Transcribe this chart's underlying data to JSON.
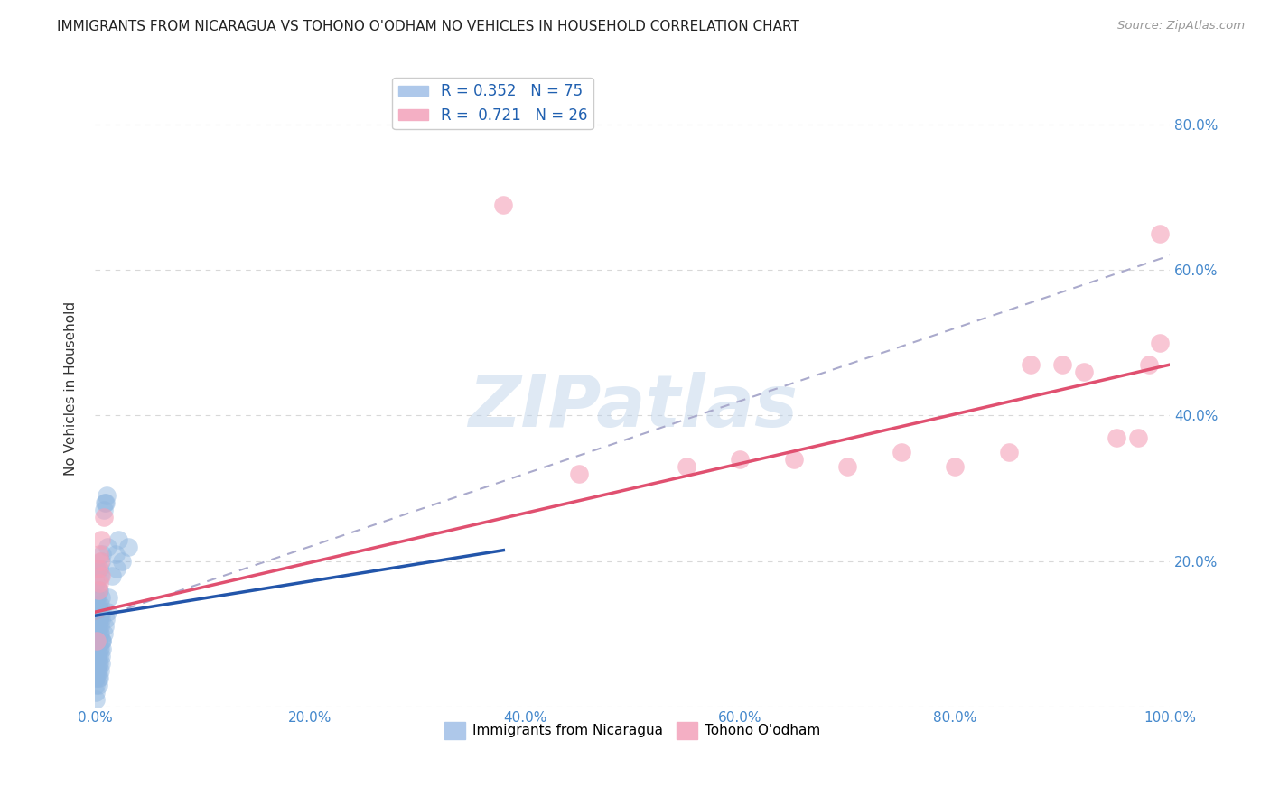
{
  "title": "IMMIGRANTS FROM NICARAGUA VS TOHONO O'ODHAM NO VEHICLES IN HOUSEHOLD CORRELATION CHART",
  "source": "Source: ZipAtlas.com",
  "ylabel": "No Vehicles in Household",
  "xlim": [
    0.0,
    1.0
  ],
  "ylim": [
    0.0,
    0.875
  ],
  "xtick_labels": [
    "0.0%",
    "",
    "",
    "",
    "",
    "",
    "20.0%",
    "",
    "",
    "",
    "",
    "",
    "40.0%",
    "",
    "",
    "",
    "",
    "",
    "60.0%",
    "",
    "",
    "",
    "",
    "",
    "80.0%",
    "",
    "",
    "",
    "",
    "",
    "100.0%"
  ],
  "xtick_values": [
    0.0,
    0.2,
    0.4,
    0.6,
    0.8,
    1.0
  ],
  "xtick_display": [
    "0.0%",
    "20.0%",
    "40.0%",
    "60.0%",
    "80.0%",
    "100.0%"
  ],
  "ytick_values": [
    0.0,
    0.2,
    0.4,
    0.6,
    0.8
  ],
  "ytick_labels_right": [
    "",
    "20.0%",
    "40.0%",
    "60.0%",
    "80.0%"
  ],
  "legend_labels": [
    "Immigrants from Nicaragua",
    "Tohono O'odham"
  ],
  "watermark": "ZIPatlas",
  "blue_color": "#92b8e0",
  "pink_color": "#f4a0b8",
  "blue_scatter": [
    [
      0.002,
      0.13
    ],
    [
      0.003,
      0.14
    ],
    [
      0.004,
      0.16
    ],
    [
      0.005,
      0.14
    ],
    [
      0.006,
      0.15
    ],
    [
      0.002,
      0.11
    ],
    [
      0.004,
      0.12
    ],
    [
      0.005,
      0.13
    ],
    [
      0.001,
      0.09
    ],
    [
      0.003,
      0.11
    ],
    [
      0.004,
      0.12
    ],
    [
      0.005,
      0.13
    ],
    [
      0.003,
      0.09
    ],
    [
      0.004,
      0.08
    ],
    [
      0.005,
      0.1
    ],
    [
      0.006,
      0.09
    ],
    [
      0.007,
      0.08
    ],
    [
      0.004,
      0.07
    ],
    [
      0.003,
      0.06
    ],
    [
      0.002,
      0.07
    ],
    [
      0.003,
      0.05
    ],
    [
      0.004,
      0.06
    ],
    [
      0.005,
      0.08
    ],
    [
      0.006,
      0.07
    ],
    [
      0.007,
      0.09
    ],
    [
      0.001,
      0.13
    ],
    [
      0.002,
      0.15
    ],
    [
      0.003,
      0.16
    ],
    [
      0.004,
      0.19
    ],
    [
      0.005,
      0.18
    ],
    [
      0.006,
      0.2
    ],
    [
      0.007,
      0.21
    ],
    [
      0.003,
      0.09
    ],
    [
      0.004,
      0.1
    ],
    [
      0.005,
      0.11
    ],
    [
      0.006,
      0.12
    ],
    [
      0.007,
      0.13
    ],
    [
      0.008,
      0.27
    ],
    [
      0.009,
      0.28
    ],
    [
      0.01,
      0.28
    ],
    [
      0.011,
      0.29
    ],
    [
      0.012,
      0.22
    ],
    [
      0.001,
      0.14
    ],
    [
      0.001,
      0.15
    ],
    [
      0.002,
      0.09
    ],
    [
      0.002,
      0.05
    ],
    [
      0.003,
      0.04
    ],
    [
      0.001,
      0.04
    ],
    [
      0.001,
      0.07
    ],
    [
      0.001,
      0.11
    ],
    [
      0.001,
      0.13
    ],
    [
      0.001,
      0.17
    ],
    [
      0.002,
      0.19
    ],
    [
      0.003,
      0.03
    ],
    [
      0.004,
      0.04
    ],
    [
      0.005,
      0.05
    ],
    [
      0.006,
      0.06
    ],
    [
      0.007,
      0.09
    ],
    [
      0.008,
      0.1
    ],
    [
      0.009,
      0.11
    ],
    [
      0.01,
      0.12
    ],
    [
      0.001,
      0.09
    ],
    [
      0.001,
      0.08
    ],
    [
      0.002,
      0.07
    ],
    [
      0.001,
      0.04
    ],
    [
      0.001,
      0.03
    ],
    [
      0.001,
      0.02
    ],
    [
      0.012,
      0.13
    ],
    [
      0.013,
      0.15
    ],
    [
      0.019,
      0.21
    ],
    [
      0.025,
      0.2
    ],
    [
      0.031,
      0.22
    ],
    [
      0.022,
      0.23
    ],
    [
      0.02,
      0.19
    ],
    [
      0.016,
      0.18
    ],
    [
      0.001,
      0.01
    ]
  ],
  "pink_scatter": [
    [
      0.003,
      0.19
    ],
    [
      0.004,
      0.21
    ],
    [
      0.005,
      0.2
    ],
    [
      0.006,
      0.18
    ],
    [
      0.003,
      0.16
    ],
    [
      0.004,
      0.17
    ],
    [
      0.006,
      0.23
    ],
    [
      0.008,
      0.26
    ],
    [
      0.38,
      0.69
    ],
    [
      0.55,
      0.33
    ],
    [
      0.6,
      0.34
    ],
    [
      0.65,
      0.34
    ],
    [
      0.7,
      0.33
    ],
    [
      0.75,
      0.35
    ],
    [
      0.8,
      0.33
    ],
    [
      0.85,
      0.35
    ],
    [
      0.87,
      0.47
    ],
    [
      0.9,
      0.47
    ],
    [
      0.92,
      0.46
    ],
    [
      0.95,
      0.37
    ],
    [
      0.97,
      0.37
    ],
    [
      0.98,
      0.47
    ],
    [
      0.99,
      0.5
    ],
    [
      0.99,
      0.65
    ],
    [
      0.45,
      0.32
    ],
    [
      0.002,
      0.09
    ]
  ],
  "blue_line_x": [
    0.0,
    0.38
  ],
  "blue_line_y": [
    0.125,
    0.215
  ],
  "pink_line_x": [
    0.0,
    1.0
  ],
  "pink_line_y": [
    0.13,
    0.47
  ],
  "dashed_line_x": [
    0.0,
    1.0
  ],
  "dashed_line_y": [
    0.12,
    0.62
  ],
  "background_color": "#ffffff",
  "grid_color": "#d8d8d8",
  "title_fontsize": 11,
  "source_fontsize": 9.5
}
